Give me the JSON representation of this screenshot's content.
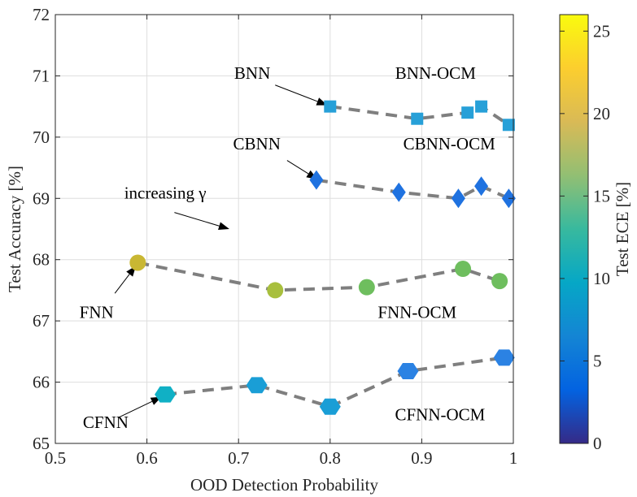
{
  "chart_data": {
    "type": "scatter",
    "xlabel": "OOD Detection Probability",
    "ylabel": "Test Accuracy [%]",
    "xlim": [
      0.5,
      1.0
    ],
    "ylim": [
      65,
      72
    ],
    "xticks": [
      "0.5",
      "0.6",
      "0.7",
      "0.8",
      "0.9",
      "1"
    ],
    "yticks": [
      "65",
      "66",
      "67",
      "68",
      "69",
      "70",
      "71",
      "72"
    ],
    "grid": true,
    "connector_style": "gray dashed",
    "colorbar": {
      "label": "Test ECE [%]",
      "range": [
        0,
        26
      ],
      "ticks": [
        "0",
        "5",
        "10",
        "15",
        "20",
        "25"
      ],
      "colormap": "parula",
      "stops": [
        "#352a87",
        "#0363e1",
        "#1485d4",
        "#06a7c6",
        "#38b99e",
        "#92bf73",
        "#d9ba56",
        "#fcce2e",
        "#f9fb0e"
      ]
    },
    "series": [
      {
        "marker": "square",
        "points": [
          {
            "x": 0.8,
            "y": 70.5,
            "color": "#27a0d8"
          },
          {
            "x": 0.895,
            "y": 70.3,
            "color": "#27a0d8"
          },
          {
            "x": 0.95,
            "y": 70.4,
            "color": "#27a0d8"
          },
          {
            "x": 0.965,
            "y": 70.5,
            "color": "#27a0d8"
          },
          {
            "x": 0.995,
            "y": 70.2,
            "color": "#27a0d8"
          }
        ]
      },
      {
        "marker": "diamond",
        "points": [
          {
            "x": 0.785,
            "y": 69.3,
            "color": "#1f72e0"
          },
          {
            "x": 0.875,
            "y": 69.1,
            "color": "#1f72e0"
          },
          {
            "x": 0.94,
            "y": 69.0,
            "color": "#1f72e0"
          },
          {
            "x": 0.965,
            "y": 69.2,
            "color": "#1f72e0"
          },
          {
            "x": 0.995,
            "y": 69.0,
            "color": "#1f72e0"
          }
        ]
      },
      {
        "marker": "circle",
        "points": [
          {
            "x": 0.59,
            "y": 67.95,
            "color": "#c9b733"
          },
          {
            "x": 0.74,
            "y": 67.5,
            "color": "#a8bf3d"
          },
          {
            "x": 0.84,
            "y": 67.55,
            "color": "#6ebe5e"
          },
          {
            "x": 0.945,
            "y": 67.85,
            "color": "#6ebe5e"
          },
          {
            "x": 0.985,
            "y": 67.65,
            "color": "#6ebe5e"
          }
        ]
      },
      {
        "marker": "hexagon",
        "points": [
          {
            "x": 0.62,
            "y": 65.8,
            "color": "#10b0c5"
          },
          {
            "x": 0.72,
            "y": 65.95,
            "color": "#1a9ed6"
          },
          {
            "x": 0.8,
            "y": 65.6,
            "color": "#1a9ed6"
          },
          {
            "x": 0.885,
            "y": 66.18,
            "color": "#2b82e3"
          },
          {
            "x": 0.99,
            "y": 66.4,
            "color": "#2b82e3"
          }
        ]
      }
    ],
    "annotations": [
      {
        "text": "BNN",
        "x": 0.715,
        "y": 70.95
      },
      {
        "text": "BNN-OCM",
        "x": 0.915,
        "y": 70.95
      },
      {
        "text": "CBNN",
        "x": 0.72,
        "y": 69.8
      },
      {
        "text": "CBNN-OCM",
        "x": 0.93,
        "y": 69.8
      },
      {
        "text": "increasing γ",
        "x": 0.62,
        "y": 69.0
      },
      {
        "text": "FNN",
        "x": 0.545,
        "y": 67.05
      },
      {
        "text": "FNN-OCM",
        "x": 0.895,
        "y": 67.05
      },
      {
        "text": "CFNN",
        "x": 0.555,
        "y": 65.25
      },
      {
        "text": "CFNN-OCM",
        "x": 0.92,
        "y": 65.38
      }
    ],
    "arrows": [
      {
        "from": [
          0.74,
          70.85
        ],
        "to": [
          0.797,
          70.52
        ]
      },
      {
        "from": [
          0.753,
          69.62
        ],
        "to": [
          0.786,
          69.31
        ]
      },
      {
        "from": [
          0.63,
          68.77
        ],
        "to": [
          0.69,
          68.5
        ]
      },
      {
        "from": [
          0.565,
          67.45
        ],
        "to": [
          0.588,
          67.9
        ]
      },
      {
        "from": [
          0.57,
          65.43
        ],
        "to": [
          0.616,
          65.76
        ]
      }
    ]
  }
}
